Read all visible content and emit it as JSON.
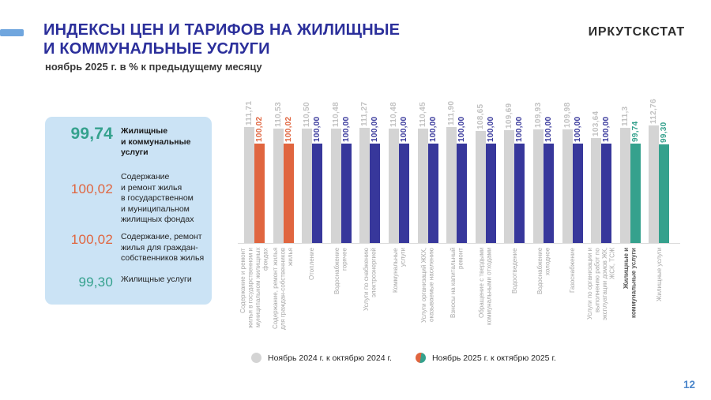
{
  "header": {
    "title_line1": "ИНДЕКСЫ ЦЕН И ТАРИФОВ НА ЖИЛИЩНЫЕ",
    "title_line2": "И КОММУНАЛЬНЫЕ УСЛУГИ",
    "subtitle": "ноябрь 2025 г. в % к предыдущему месяцу",
    "brand": "ИРКУТСКСТАТ"
  },
  "summary_panel": {
    "rows": [
      {
        "value": "99,74",
        "value_color": "teal",
        "bold": true,
        "label": "Жилищные\nи коммунальные\nуслуги"
      },
      {
        "value": "100,02",
        "value_color": "orange",
        "bold": false,
        "label": "Содержание\nи ремонт жилья\nв государственном\nи муниципальном\nжилищных фондах"
      },
      {
        "value": "100,02",
        "value_color": "orange",
        "bold": false,
        "label": "Содержание, ремонт\nжилья для граждан-\nсобственников жилья"
      },
      {
        "value": "99,30",
        "value_color": "teal",
        "bold": false,
        "label": "Жилищные услуги"
      }
    ]
  },
  "chart_data": {
    "type": "bar",
    "title": "Индексы цен и тарифов на жилищные и коммунальные услуги, ноябрь 2025 г. в % к предыдущему месяцу",
    "categories": [
      "Содержание и ремонт\nжилья в государственном и\nмуниципальном жилищных\nфондах",
      "Содержание, ремонт жилья\nдля граждан-собственников\nжилья",
      "Отопление",
      "Водоснабжение\nгорячее",
      "Услуги по снабжению\nэлектроэнергией",
      "Коммунальные\nуслуги",
      "Услуги организаций ЖКХ,\nоказываемые населению",
      "Взносы на капитальный\nремонт",
      "Обращение с твердыми\nкоммунальными отходами",
      "Водоотведение",
      "Водоснабжение\nхолодное",
      "Газоснабжение",
      "Услуги по организации и\nвыполнению работ по\nэксплуатации домов ЖК,\nЖСК, ТСЖ",
      "Жилищные и\nкоммунальные услуги",
      "Жилищные услуги"
    ],
    "series": [
      {
        "name": "Ноябрь 2024 г. к октябрю 2024 г.",
        "values": [
          111.71,
          110.53,
          110.5,
          110.48,
          111.27,
          110.48,
          110.45,
          111.9,
          108.65,
          109.69,
          109.93,
          109.98,
          103.64,
          111.3,
          112.76
        ],
        "labels": [
          "111,71",
          "110,53",
          "110,50",
          "110,48",
          "111,27",
          "110,48",
          "110,45",
          "111,90",
          "108,65",
          "109,69",
          "109,93",
          "109,98",
          "103,64",
          "111,3",
          "112,76"
        ],
        "point_colors": [
          "gray",
          "gray",
          "gray",
          "gray",
          "gray",
          "gray",
          "gray",
          "gray",
          "gray",
          "gray",
          "gray",
          "gray",
          "gray",
          "gray",
          "gray"
        ]
      },
      {
        "name": "Ноябрь 2025 г. к октябрю 2025 г.",
        "values": [
          100.02,
          100.02,
          100.0,
          100.0,
          100.0,
          100.0,
          100.0,
          100.0,
          100.0,
          100.0,
          100.0,
          100.0,
          100.0,
          99.74,
          99.3
        ],
        "labels": [
          "100,02",
          "100,02",
          "100,00",
          "100,00",
          "100,00",
          "100,00",
          "100,00",
          "100,00",
          "100,00",
          "100,00",
          "100,00",
          "100,00",
          "100,00",
          "99,74",
          "99,30"
        ],
        "point_colors": [
          "orange",
          "orange",
          "blue",
          "blue",
          "blue",
          "blue",
          "blue",
          "blue",
          "blue",
          "blue",
          "blue",
          "blue",
          "blue",
          "teal",
          "teal"
        ]
      }
    ],
    "emphasized_category_index": 13,
    "value_axis_visible": false,
    "grid": false,
    "legend_position": "bottom"
  },
  "legend": {
    "items": [
      {
        "label": "Ноябрь 2024 г. к октябрю 2024 г.",
        "swatch": [
          "gray"
        ]
      },
      {
        "label": "Ноябрь 2025 г. к октябрю 2025 г.",
        "swatch": [
          "orange",
          "teal"
        ]
      }
    ]
  },
  "page_number": "12",
  "colors": {
    "title_blue": "#2b2f9b",
    "accent_dash": "#70a6de",
    "panel_bg": "#cbe3f5",
    "gray": "#d4d4d4",
    "gray_label": "#c2c2c2",
    "orange": "#e0653f",
    "blue": "#37379b",
    "teal": "#35a18d",
    "baseline": "#dcdcdc",
    "page_number_blue": "#4d87cb"
  }
}
